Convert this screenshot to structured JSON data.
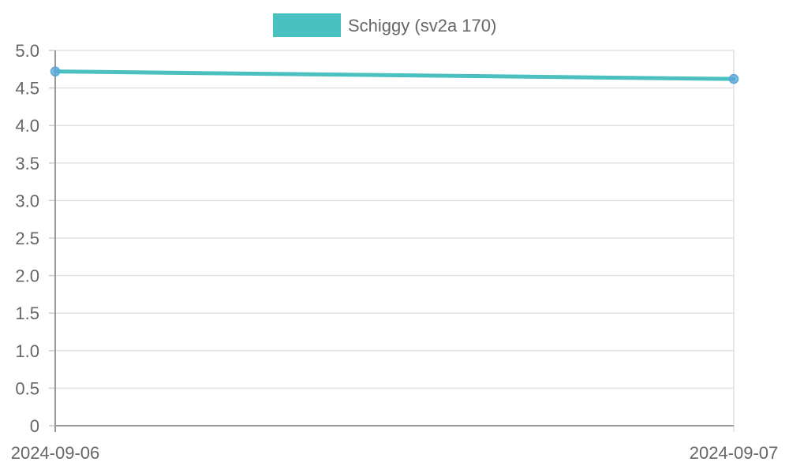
{
  "chart_data": {
    "type": "line",
    "title": "",
    "xlabel": "",
    "ylabel": "",
    "x": [
      "2024-09-06",
      "2024-09-07"
    ],
    "series": [
      {
        "name": "Schiggy (sv2a 170)",
        "values": [
          4.72,
          4.62
        ],
        "color": "#4BC0C0"
      }
    ],
    "ylim": [
      0,
      5
    ],
    "yticks": [
      "0",
      "0.5",
      "1.0",
      "1.5",
      "2.0",
      "2.5",
      "3.0",
      "3.5",
      "4.0",
      "4.5",
      "5.0"
    ],
    "ytick_values": [
      0,
      0.5,
      1.0,
      1.5,
      2.0,
      2.5,
      3.0,
      3.5,
      4.0,
      4.5,
      5.0
    ],
    "grid": true,
    "legend_position": "top-center",
    "point_color": "#59A5D8"
  }
}
